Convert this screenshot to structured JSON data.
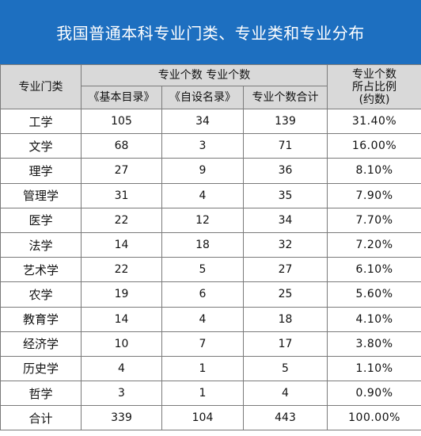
{
  "title": "我国普通本科专业门类、专业类和专业分布",
  "header": {
    "category": "专业门类",
    "group_top": "专业个数 专业个数",
    "col_basic": "《基本目录》",
    "col_self": "《自设名录》",
    "col_total": "专业个数合计",
    "ratio_line1": "专业个数",
    "ratio_line2": "所占比例",
    "ratio_line3": "(约数)"
  },
  "rows": [
    {
      "category": "工学",
      "basic": "105",
      "self": "34",
      "total": "139",
      "ratio": "31.40%"
    },
    {
      "category": "文学",
      "basic": "68",
      "self": "3",
      "total": "71",
      "ratio": "16.00%"
    },
    {
      "category": "理学",
      "basic": "27",
      "self": "9",
      "total": "36",
      "ratio": "8.10%"
    },
    {
      "category": "管理学",
      "basic": "31",
      "self": "4",
      "total": "35",
      "ratio": "7.90%"
    },
    {
      "category": "医学",
      "basic": "22",
      "self": "12",
      "total": "34",
      "ratio": "7.70%"
    },
    {
      "category": "法学",
      "basic": "14",
      "self": "18",
      "total": "32",
      "ratio": "7.20%"
    },
    {
      "category": "艺术学",
      "basic": "22",
      "self": "5",
      "total": "27",
      "ratio": "6.10%"
    },
    {
      "category": "农学",
      "basic": "19",
      "self": "6",
      "total": "25",
      "ratio": "5.60%"
    },
    {
      "category": "教育学",
      "basic": "14",
      "self": "4",
      "total": "18",
      "ratio": "4.10%"
    },
    {
      "category": "经济学",
      "basic": "10",
      "self": "7",
      "total": "17",
      "ratio": "3.80%"
    },
    {
      "category": "历史学",
      "basic": "4",
      "self": "1",
      "total": "5",
      "ratio": "1.10%"
    },
    {
      "category": "哲学",
      "basic": "3",
      "self": "1",
      "total": "4",
      "ratio": "0.90%"
    },
    {
      "category": "合计",
      "basic": "339",
      "self": "104",
      "total": "443",
      "ratio": "100.00%"
    }
  ],
  "colors": {
    "title_bg": "#1d6fc0",
    "header_bg": "#d9d9d9",
    "border": "#7a7a7a"
  }
}
